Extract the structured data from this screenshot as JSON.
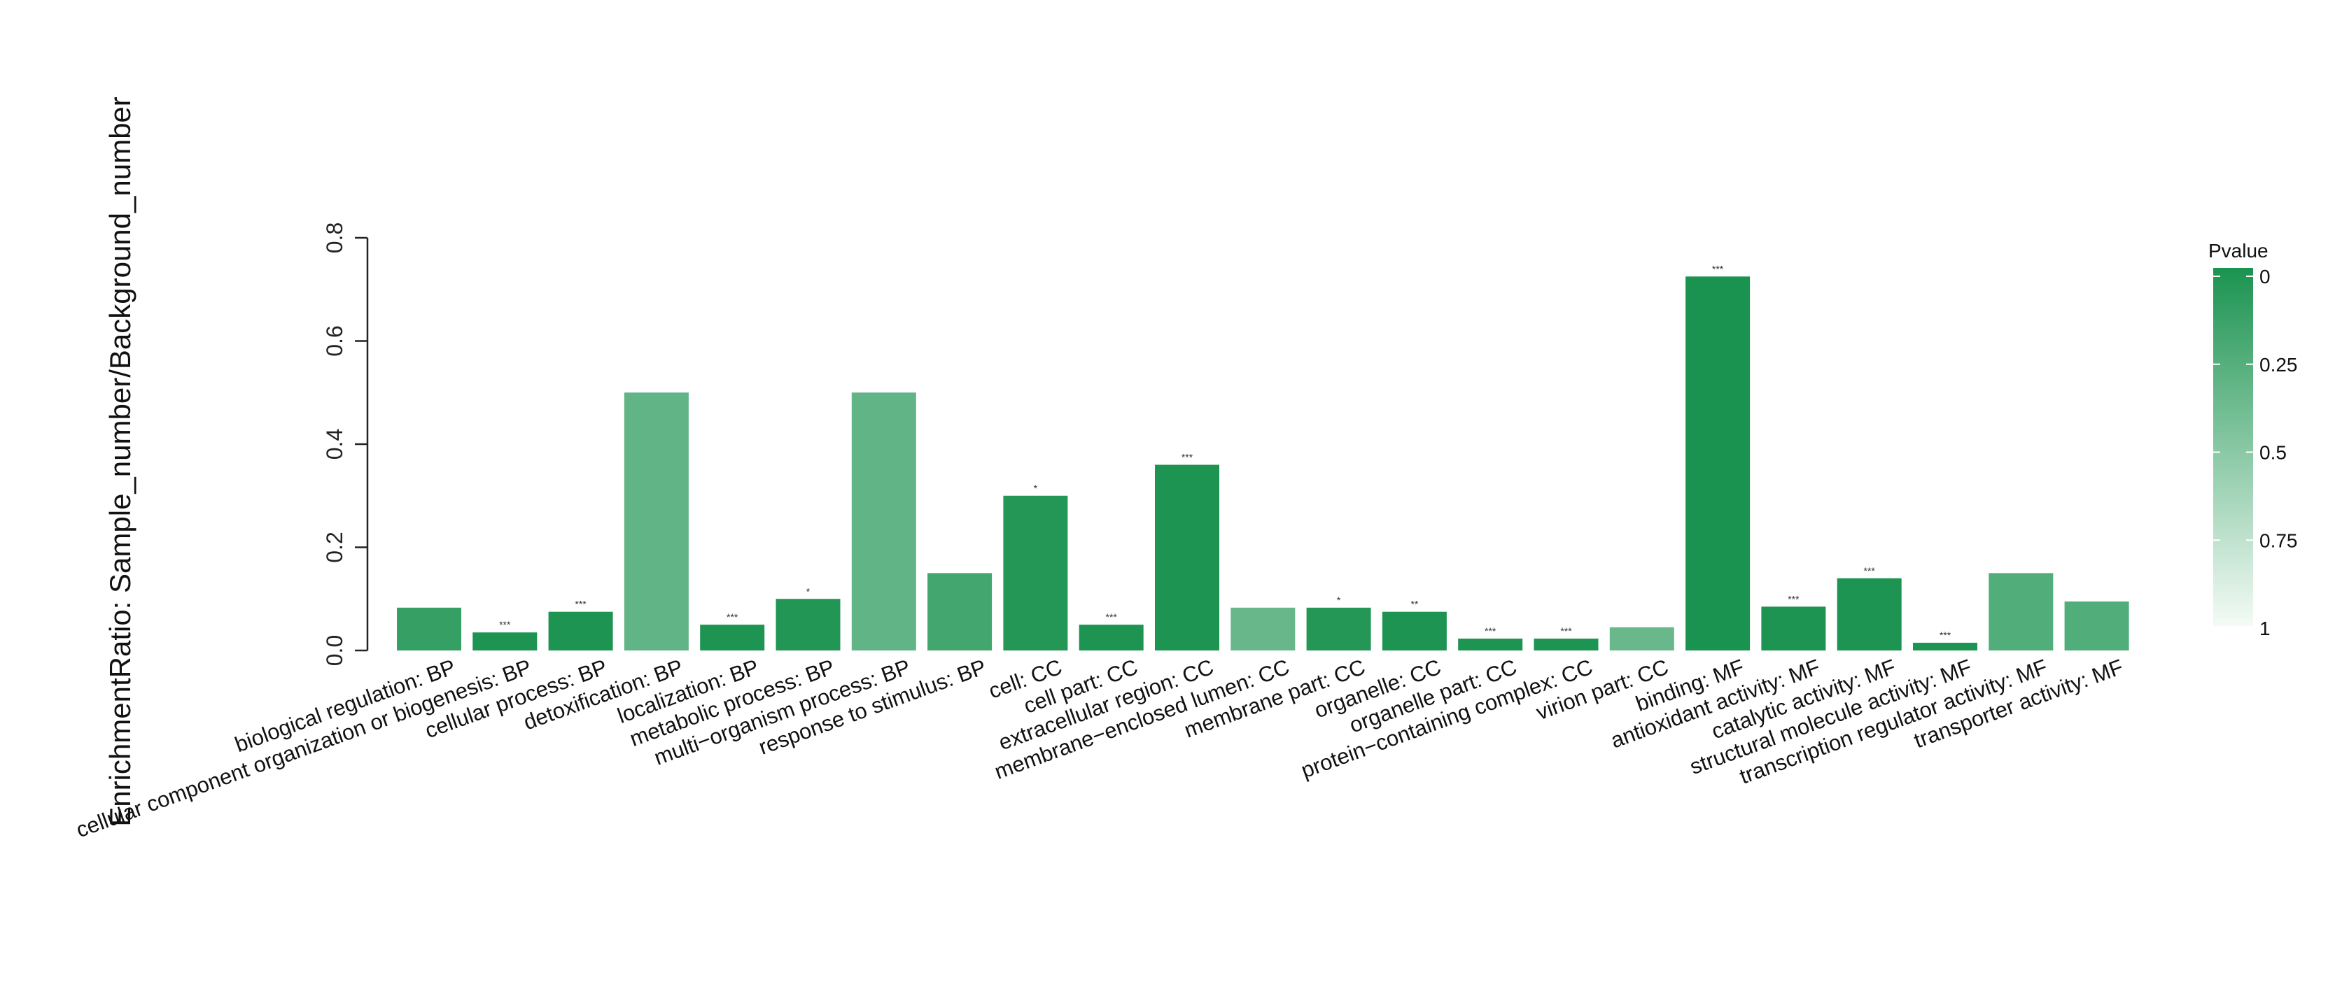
{
  "chart_data": {
    "type": "bar",
    "title": "",
    "xlabel": "",
    "ylabel": "EnrichmentRatio: Sample_number/Background_number",
    "ylim": [
      0,
      0.8
    ],
    "yticks": [
      "0.0",
      "0.2",
      "0.4",
      "0.6",
      "0.8"
    ],
    "yticks_values": [
      0,
      0.2,
      0.4,
      0.6,
      0.8
    ],
    "grid": false,
    "legend": {
      "title": "Pvalue",
      "placement": "right",
      "ticks": [
        "0",
        "0.25",
        "0.5",
        "0.75",
        "1"
      ],
      "tick_values": [
        0,
        0.25,
        0.5,
        0.75,
        1
      ],
      "color_low_p": "#1b9350",
      "color_high_p": "#f4fbf6"
    },
    "categories": [
      "biological regulation:  BP",
      "cellular component organization or biogenesis:  BP",
      "cellular process:  BP",
      "detoxification:  BP",
      "localization:  BP",
      "metabolic process:  BP",
      "multi−organism process:  BP",
      "response to stimulus:  BP",
      "cell:  CC",
      "cell part:  CC",
      "extracellular region:  CC",
      "membrane−enclosed lumen:  CC",
      "membrane part:  CC",
      "organelle:  CC",
      "organelle part:  CC",
      "protein−containing complex:  CC",
      "virion part:  CC",
      "binding:  MF",
      "antioxidant activity:  MF",
      "catalytic activity:  MF",
      "structural molecule activity:  MF",
      "transcription regulator activity:  MF",
      "transporter activity:  MF"
    ],
    "values": [
      0.083,
      0.035,
      0.075,
      0.5,
      0.05,
      0.1,
      0.5,
      0.15,
      0.3,
      0.05,
      0.36,
      0.083,
      0.083,
      0.075,
      0.023,
      0.023,
      0.045,
      0.725,
      0.085,
      0.14,
      0.015,
      0.15,
      0.095
    ],
    "pvalues": [
      0.12,
      0.01,
      0.01,
      0.32,
      0.01,
      0.03,
      0.32,
      0.18,
      0.04,
      0.01,
      0.01,
      0.35,
      0.04,
      0.01,
      0.01,
      0.01,
      0.36,
      0.001,
      0.01,
      0.01,
      0.01,
      0.25,
      0.25
    ],
    "significance": [
      "",
      "***",
      "***",
      "",
      "***",
      "*",
      "",
      "",
      "*",
      "***",
      "***",
      "",
      "*",
      "**",
      "***",
      "***",
      "",
      "***",
      "***",
      "***",
      "***",
      "",
      ""
    ]
  }
}
